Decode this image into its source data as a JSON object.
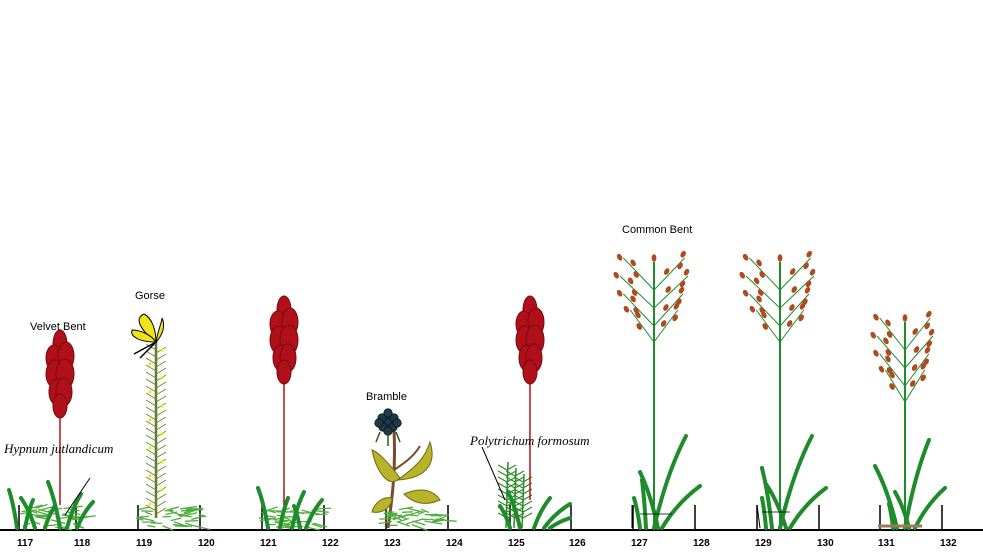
{
  "labels": {
    "velvet_bent": "Velvet Bent",
    "gorse": "Gorse",
    "bramble": "Bramble",
    "common_bent": "Common Bent",
    "hypnum": "Hypnum jutlandicum",
    "polytrichum": "Polytrichum formosum"
  },
  "scale": [
    "117",
    "118",
    "119",
    "120",
    "121",
    "122",
    "123",
    "124",
    "125",
    "126",
    "127",
    "128",
    "129",
    "130",
    "131",
    "132"
  ],
  "colors": {
    "grass_green": "#1e8c2a",
    "moss_green": "#4fae3c",
    "velvet_red": "#b0101a",
    "velvet_dark": "#7a0a10",
    "gorse_yellow": "#f2e21a",
    "bramble_leaf": "#b8b42a",
    "bramble_berry": "#1f3a48",
    "bent_spikelet": "#b04a1e",
    "ground": "#000000"
  }
}
